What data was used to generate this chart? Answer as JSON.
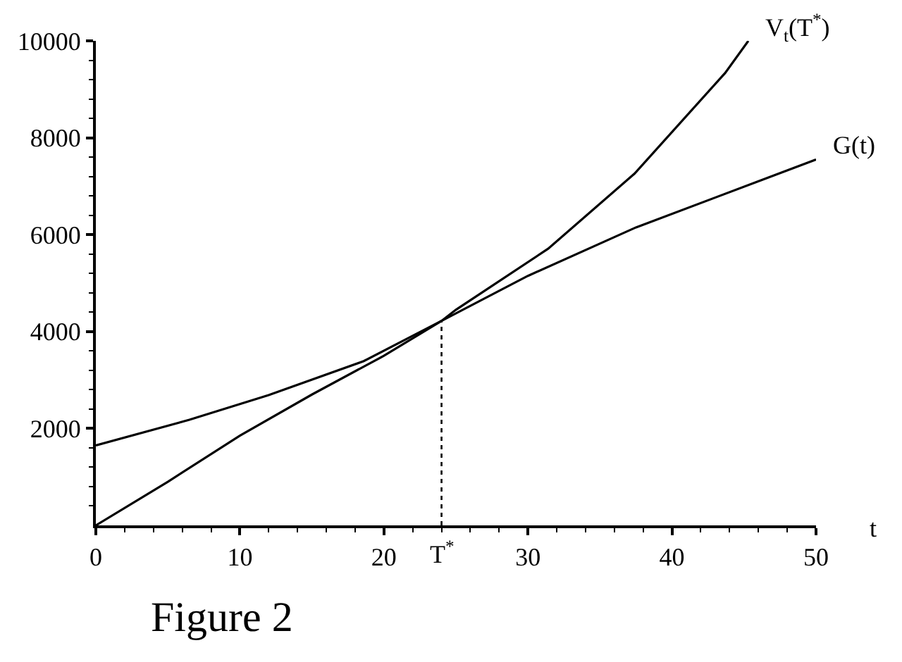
{
  "chart_data": {
    "type": "line",
    "xlabel": "t",
    "annotations": [
      "Figure 2"
    ],
    "line_style": "solid",
    "series": [
      {
        "name": "V$_{t}$(T$^{*}$)",
        "color": "#000000",
        "x": [
          0,
          5,
          10,
          15,
          20,
          24,
          25,
          31.4,
          37.4,
          43.7,
          45.3
        ],
        "values": [
          0,
          900,
          1850,
          2700,
          3500,
          4220,
          4450,
          5710,
          7260,
          9340,
          10000
        ]
      },
      {
        "name": "G(t)",
        "color": "#000000",
        "x": [
          0,
          6.5,
          12,
          18.6,
          24,
          30,
          37.5,
          50
        ],
        "values": [
          1650,
          2180,
          2690,
          3390,
          4220,
          5150,
          6150,
          7550
        ]
      }
    ],
    "xlim": [
      0,
      50
    ],
    "ylim": [
      0,
      10000
    ],
    "xticks": [
      0,
      {
        "value": 2,
        "label": null
      },
      {
        "value": 4,
        "label": null
      },
      {
        "value": 6,
        "label": null
      },
      {
        "value": 8,
        "label": null
      },
      10,
      {
        "value": 12,
        "label": null
      },
      {
        "value": 14,
        "label": null
      },
      {
        "value": 16,
        "label": null
      },
      {
        "value": 18,
        "label": null
      },
      20,
      {
        "value": 22,
        "label": null
      },
      {
        "value": 24,
        "label": null
      },
      {
        "value": 26,
        "label": null
      },
      {
        "value": 28,
        "label": null
      },
      30,
      {
        "value": 32,
        "label": null
      },
      {
        "value": 34,
        "label": null
      },
      {
        "value": 36,
        "label": null
      },
      {
        "value": 38,
        "label": null
      },
      40,
      {
        "value": 42,
        "label": null
      },
      {
        "value": 44,
        "label": null
      },
      {
        "value": 46,
        "label": null
      },
      {
        "value": 48,
        "label": null
      },
      50
    ],
    "yticks": [
      {
        "value": 400,
        "label": null
      },
      {
        "value": 800,
        "label": null
      },
      {
        "value": 1200,
        "label": null
      },
      {
        "value": 1600,
        "label": null
      },
      2000,
      {
        "value": 2400,
        "label": null
      },
      {
        "value": 2800,
        "label": null
      },
      {
        "value": 3200,
        "label": null
      },
      {
        "value": 3600,
        "label": null
      },
      4000,
      {
        "value": 4400,
        "label": null
      },
      {
        "value": 4800,
        "label": null
      },
      {
        "value": 5200,
        "label": null
      },
      {
        "value": 5600,
        "label": null
      },
      6000,
      {
        "value": 6400,
        "label": null
      },
      {
        "value": 6800,
        "label": null
      },
      {
        "value": 7200,
        "label": null
      },
      {
        "value": 7600,
        "label": null
      },
      8000,
      {
        "value": 8400,
        "label": null
      },
      {
        "value": 8800,
        "label": null
      },
      {
        "value": 9200,
        "label": null
      },
      {
        "value": 9600,
        "label": null
      },
      10000
    ],
    "ref_lines": [
      {
        "axis": "x",
        "value": 24,
        "label": "T$^{*}$",
        "color": "#000000",
        "line_style": "dotted"
      }
    ]
  }
}
